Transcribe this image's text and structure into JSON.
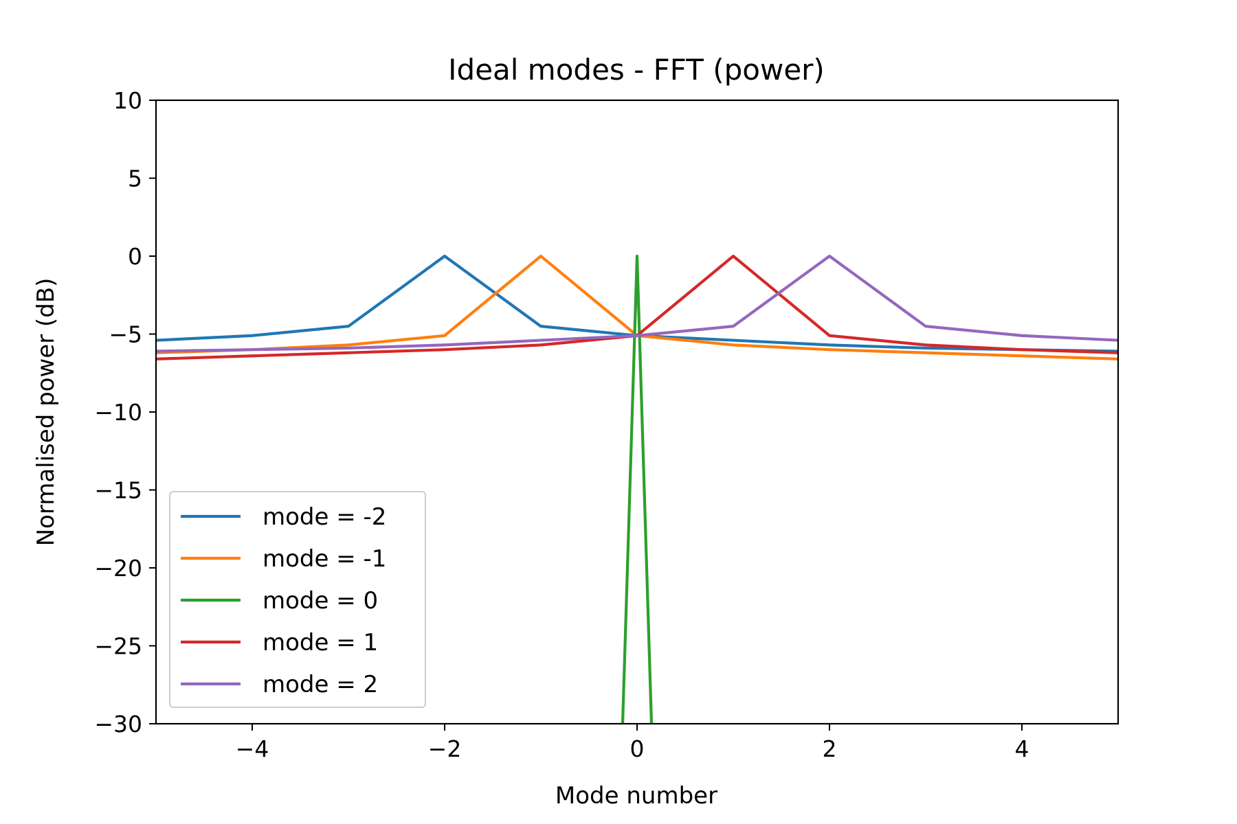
{
  "chart_data": {
    "type": "line",
    "title": "Ideal modes - FFT (power)",
    "xlabel": "Mode number",
    "ylabel": "Normalised power (dB)",
    "xlim": [
      -5,
      5
    ],
    "ylim": [
      -30,
      10
    ],
    "xticks": [
      {
        "value": -4,
        "label": "−4"
      },
      {
        "value": -2,
        "label": "−2"
      },
      {
        "value": 0,
        "label": "0"
      },
      {
        "value": 2,
        "label": "2"
      },
      {
        "value": 4,
        "label": "4"
      }
    ],
    "yticks": [
      {
        "value": 10,
        "label": "10"
      },
      {
        "value": 5,
        "label": "5"
      },
      {
        "value": 0,
        "label": "0"
      },
      {
        "value": -5,
        "label": "−5"
      },
      {
        "value": -10,
        "label": "−10"
      },
      {
        "value": -15,
        "label": "−15"
      },
      {
        "value": -20,
        "label": "−20"
      },
      {
        "value": -25,
        "label": "−25"
      },
      {
        "value": -30,
        "label": "−30"
      }
    ],
    "grid": false,
    "legend_position": "lower-left",
    "series": [
      {
        "name": "mode = -2",
        "color": "#1f77b4",
        "x": [
          -5,
          -4,
          -3,
          -2,
          -1,
          0,
          1,
          2,
          3,
          4,
          5
        ],
        "y": [
          -5.4,
          -5.1,
          -4.5,
          0,
          -4.5,
          -5.1,
          -5.4,
          -5.7,
          -5.9,
          -6.0,
          -6.1
        ]
      },
      {
        "name": "mode = -1",
        "color": "#ff7f0e",
        "x": [
          -5,
          -4,
          -3,
          -2,
          -1,
          0,
          1,
          2,
          3,
          4,
          5
        ],
        "y": [
          -6.2,
          -6.0,
          -5.7,
          -5.1,
          0,
          -5.1,
          -5.7,
          -6.0,
          -6.2,
          -6.4,
          -6.6
        ]
      },
      {
        "name": "mode = 0",
        "color": "#2ca02c",
        "x": [
          -0.15,
          0,
          0.15
        ],
        "y": [
          -30,
          0,
          -30
        ]
      },
      {
        "name": "mode = 1",
        "color": "#d62728",
        "x": [
          -5,
          -4,
          -3,
          -2,
          -1,
          0,
          1,
          2,
          3,
          4,
          5
        ],
        "y": [
          -6.6,
          -6.4,
          -6.2,
          -6.0,
          -5.7,
          -5.1,
          0,
          -5.1,
          -5.7,
          -6.0,
          -6.2
        ]
      },
      {
        "name": "mode = 2",
        "color": "#9467bd",
        "x": [
          -5,
          -4,
          -3,
          -2,
          -1,
          0,
          1,
          2,
          3,
          4,
          5
        ],
        "y": [
          -6.1,
          -6.0,
          -5.9,
          -5.7,
          -5.4,
          -5.1,
          -4.5,
          0,
          -4.5,
          -5.1,
          -5.4
        ]
      }
    ]
  }
}
